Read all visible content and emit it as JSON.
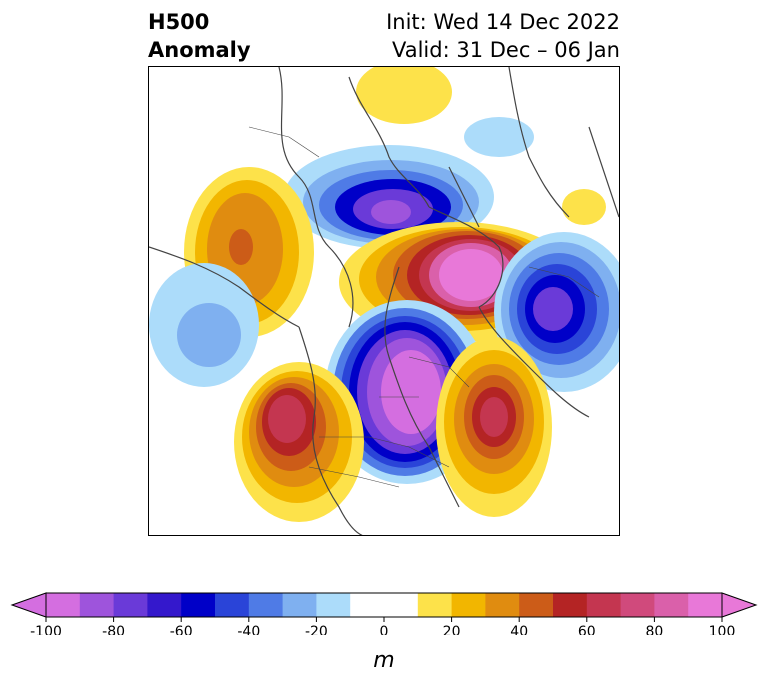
{
  "header": {
    "title_line1": "H500",
    "title_line2": "Anomaly",
    "init_text": "Init: Wed 14 Dec 2022",
    "valid_text": "Valid: 31 Dec – 06 Jan"
  },
  "colorbar": {
    "unit_label": "m",
    "tick_labels": [
      "-100",
      "-80",
      "-60",
      "-40",
      "-20",
      "0",
      "20",
      "40",
      "60",
      "80",
      "100"
    ],
    "range": [
      -100,
      100
    ],
    "step": 10,
    "colors": [
      "#d46ee0",
      "#9e54dc",
      "#6a3ad8",
      "#3418cc",
      "#0000c8",
      "#2a44d8",
      "#4f7be6",
      "#7fb0f0",
      "#acdcfa",
      "#ffffff",
      "#ffffff",
      "#fde24a",
      "#f2b600",
      "#e08c10",
      "#cc5c18",
      "#b42424",
      "#c43650",
      "#d04a7c",
      "#da60aa",
      "#e878d8"
    ]
  },
  "map": {
    "region": "Northern Hemisphere polar view",
    "anomaly_colors": {
      "negative_strong": "#8a40d8",
      "negative": "#3418cc",
      "negative_weak": "#acdcfa",
      "positive_weak": "#fde24a",
      "positive": "#e08c10",
      "positive_strong": "#da60aa"
    }
  }
}
